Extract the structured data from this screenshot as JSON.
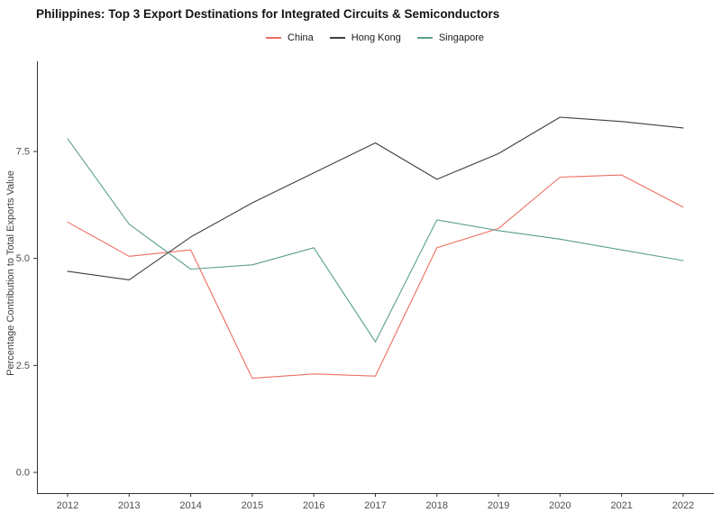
{
  "title": "Philippines: Top 3 Export Destinations for Integrated Circuits & Semiconductors",
  "legend": {
    "position": "top-center",
    "items": [
      "China",
      "Hong Kong",
      "Singapore"
    ]
  },
  "chart_data": {
    "type": "line",
    "title": "Philippines: Top 3 Export Destinations for Integrated Circuits & Semiconductors",
    "xlabel": "",
    "ylabel": "Percentage Contribution to Total Exports Value",
    "categories": [
      "2012",
      "2013",
      "2014",
      "2015",
      "2016",
      "2017",
      "2018",
      "2019",
      "2020",
      "2021",
      "2022"
    ],
    "series": [
      {
        "name": "China",
        "color": "#ee6f62",
        "values": [
          5.85,
          5.05,
          5.2,
          2.2,
          2.3,
          2.25,
          5.25,
          5.7,
          6.9,
          6.95,
          6.2
        ]
      },
      {
        "name": "Hong Kong",
        "color": "#3f3f3f",
        "values": [
          4.7,
          4.5,
          5.5,
          6.3,
          7.0,
          7.7,
          6.85,
          7.45,
          8.3,
          8.2,
          8.05
        ]
      },
      {
        "name": "Singapore",
        "color": "#5aa08e",
        "values": [
          7.8,
          5.8,
          4.75,
          4.85,
          5.25,
          3.05,
          5.9,
          5.65,
          5.45,
          5.2,
          4.95
        ]
      }
    ],
    "yticks": {
      "values": [
        0,
        2.5,
        5,
        7.5
      ],
      "labels": [
        "0.0",
        "2.5",
        "5.0",
        "7.5"
      ]
    },
    "ylim": [
      -0.5,
      9.6
    ],
    "grid": false,
    "legend_position": "top",
    "axis_color": "#333333",
    "tick_label_color": "#4d4d4d"
  }
}
